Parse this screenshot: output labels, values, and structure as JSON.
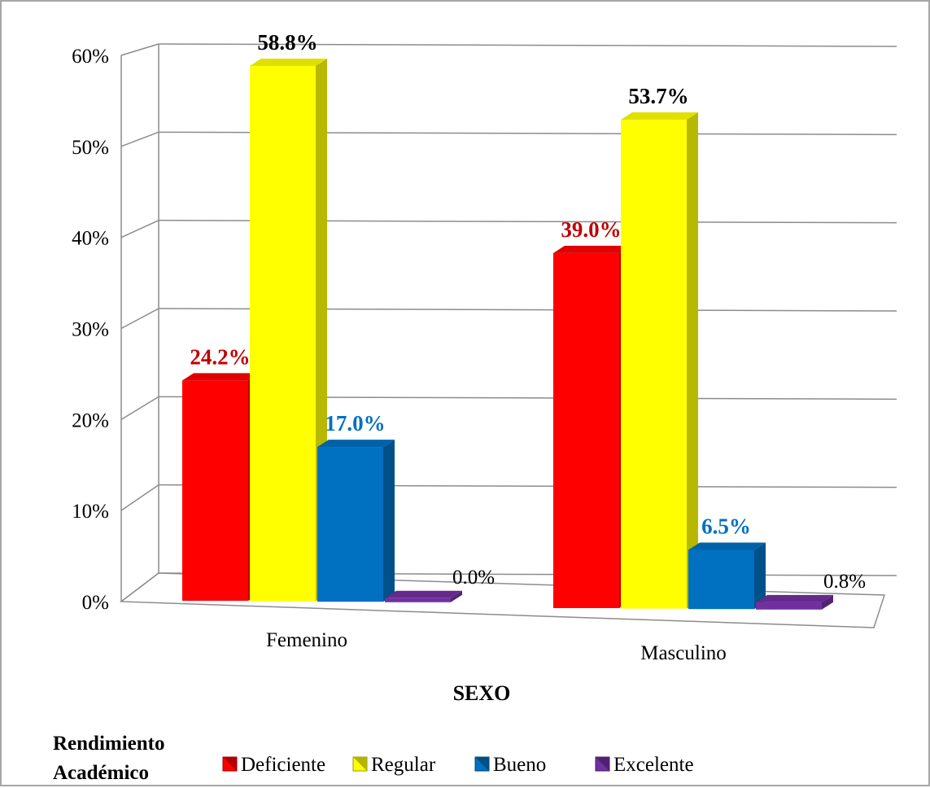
{
  "chart_data": {
    "type": "bar",
    "style": "3d-clustered-column",
    "xlabel": "SEXO",
    "ylabel": "",
    "categories": [
      "Femenino",
      "Masculino"
    ],
    "yticks": [
      "0%",
      "10%",
      "20%",
      "30%",
      "40%",
      "50%",
      "60%"
    ],
    "ylim": [
      0,
      60
    ],
    "grid": true,
    "legend": {
      "position": "bottom",
      "title_lines": [
        "Rendimiento",
        "Académico"
      ]
    },
    "series": [
      {
        "name": "Deficiente",
        "values": [
          24.2,
          39.0
        ],
        "labels": [
          "24.2%",
          "39.0%"
        ],
        "color": "#ff0000",
        "label_color": "#c00000"
      },
      {
        "name": "Regular",
        "values": [
          58.8,
          53.7
        ],
        "labels": [
          "58.8%",
          "53.7%"
        ],
        "color": "#ffff00",
        "label_color": "#000000"
      },
      {
        "name": "Bueno",
        "values": [
          17.0,
          6.5
        ],
        "labels": [
          "17.0%",
          "6.5%"
        ],
        "color": "#0070c0",
        "label_color": "#0070c0"
      },
      {
        "name": "Excelente",
        "values": [
          0.0,
          0.8
        ],
        "labels": [
          "0.0%",
          "0.8%"
        ],
        "color": "#7030a0",
        "label_color": "#000000"
      }
    ]
  }
}
